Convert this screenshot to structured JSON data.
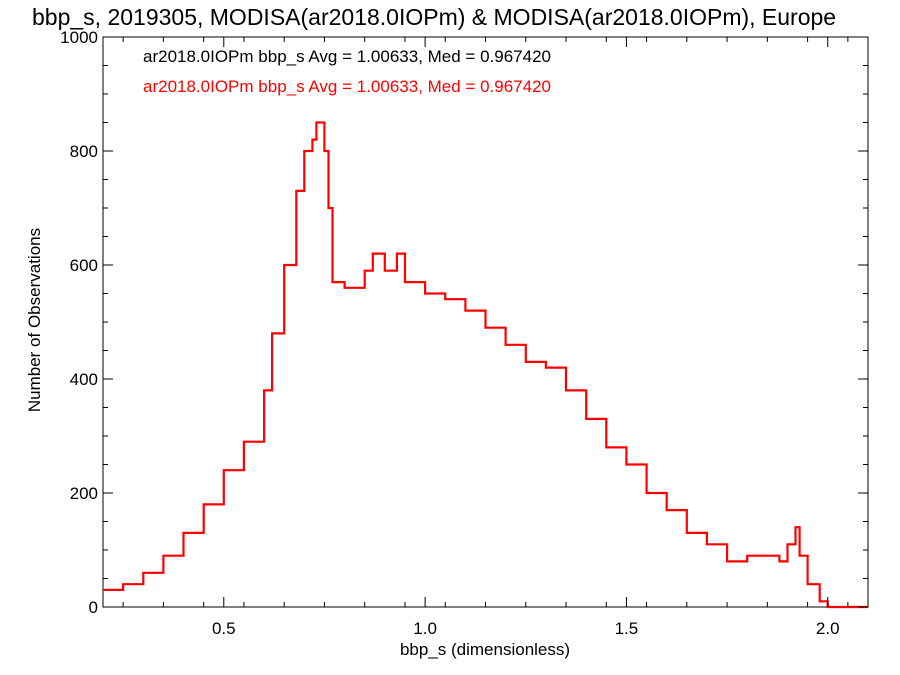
{
  "chart_data": {
    "type": "step",
    "title": "bbp_s, 2019305, MODISA(ar2018.0IOPm) & MODISA(ar2018.0IOPm), Europe",
    "xlabel": "bbp_s (dimensionless)",
    "ylabel": "Number of Observations",
    "xlim": [
      0.2,
      2.1
    ],
    "ylim": [
      0,
      1000
    ],
    "xticks": [
      0.5,
      1.0,
      1.5,
      2.0
    ],
    "xtick_labels": [
      "0.5",
      "1.0",
      "1.5",
      "2.0"
    ],
    "yticks": [
      0,
      200,
      400,
      600,
      800,
      1000
    ],
    "ytick_labels": [
      "0",
      "200",
      "400",
      "600",
      "800",
      "1000"
    ],
    "legend": [
      {
        "text": "ar2018.0IOPm bbp_s Avg = 1.00633, Med = 0.967420",
        "color": "#000000"
      },
      {
        "text": "ar2018.0IOPm bbp_s Avg = 1.00633, Med = 0.967420",
        "color": "#ff0000"
      }
    ],
    "series": [
      {
        "color": "#ff0000",
        "x": [
          0.2,
          0.25,
          0.3,
          0.35,
          0.4,
          0.45,
          0.5,
          0.55,
          0.6,
          0.62,
          0.65,
          0.68,
          0.7,
          0.72,
          0.73,
          0.75,
          0.76,
          0.77,
          0.8,
          0.85,
          0.87,
          0.9,
          0.93,
          0.95,
          1.0,
          1.05,
          1.1,
          1.15,
          1.2,
          1.25,
          1.3,
          1.35,
          1.4,
          1.45,
          1.5,
          1.55,
          1.6,
          1.65,
          1.7,
          1.75,
          1.8,
          1.85,
          1.88,
          1.9,
          1.92,
          1.93,
          1.95,
          1.98,
          2.0,
          2.1
        ],
        "y": [
          30,
          40,
          60,
          90,
          130,
          180,
          240,
          290,
          380,
          480,
          600,
          730,
          800,
          820,
          850,
          800,
          700,
          570,
          560,
          590,
          620,
          590,
          620,
          570,
          550,
          540,
          520,
          490,
          460,
          430,
          420,
          380,
          330,
          280,
          250,
          200,
          170,
          130,
          110,
          80,
          90,
          90,
          80,
          110,
          140,
          90,
          40,
          10,
          0,
          0
        ]
      }
    ]
  }
}
